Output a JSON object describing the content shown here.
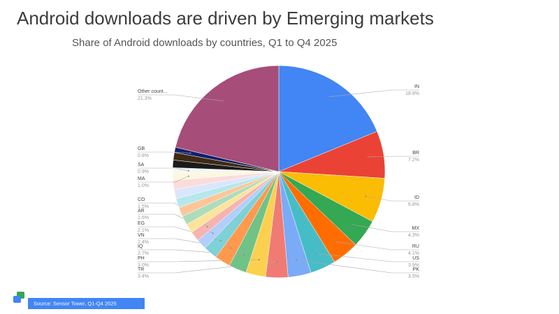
{
  "chart_data": {
    "type": "pie",
    "title": "Android downloads are driven by Emerging markets",
    "subtitle": "Share of Android downloads by countries, Q1 to Q4 2025",
    "source": "Source: Sensor Tower,  Q1-Q4 2025",
    "categories": [
      "IN",
      "BR",
      "ID",
      "MX",
      "RU",
      "US",
      "PK",
      "TR",
      "PH",
      "IQ",
      "VN",
      "EG",
      "AR",
      "CO",
      null,
      null,
      null,
      null,
      null,
      null,
      "MA",
      "SA",
      null,
      null,
      "GB",
      "Other count..."
    ],
    "values": [
      18.8,
      7.2,
      6.8,
      4.3,
      4.1,
      3.9,
      3.5,
      3.4,
      3.0,
      2.7,
      2.4,
      2.1,
      1.6,
      1.5,
      1.4,
      1.4,
      1.4,
      1.4,
      1.4,
      1.4,
      1.0,
      0.9,
      1.15,
      1.15,
      0.8,
      21.3
    ],
    "value_labels": [
      "18.8%",
      "7.2%",
      "6.8%",
      "4.3%",
      "4.1%",
      "3.9%",
      "3.5%",
      "3.4%",
      "3.0%",
      "2.7%",
      "2.4%",
      "2.1%",
      "1.6%",
      "1.5%",
      null,
      null,
      null,
      null,
      null,
      null,
      "1.0%",
      "0.9%",
      null,
      null,
      "0.8%",
      "21.3%"
    ],
    "colors": [
      "#4285f4",
      "#ea4335",
      "#fbbc04",
      "#34a853",
      "#ff6d01",
      "#46bdc6",
      "#7baaf7",
      "#f07b72",
      "#fcd04f",
      "#71c287",
      "#ff994d",
      "#7ed1d7",
      "#b3cefb",
      "#f7b4ae",
      "#fde49b",
      "#aedcba",
      "#ffc599",
      "#b5e8eb",
      "#d9e6fd",
      "#fbdcda",
      "#fef6dd",
      "#f4f8f0",
      "#1b1b1b",
      "#3e2a14",
      "#14206a",
      "#a64d79"
    ]
  }
}
